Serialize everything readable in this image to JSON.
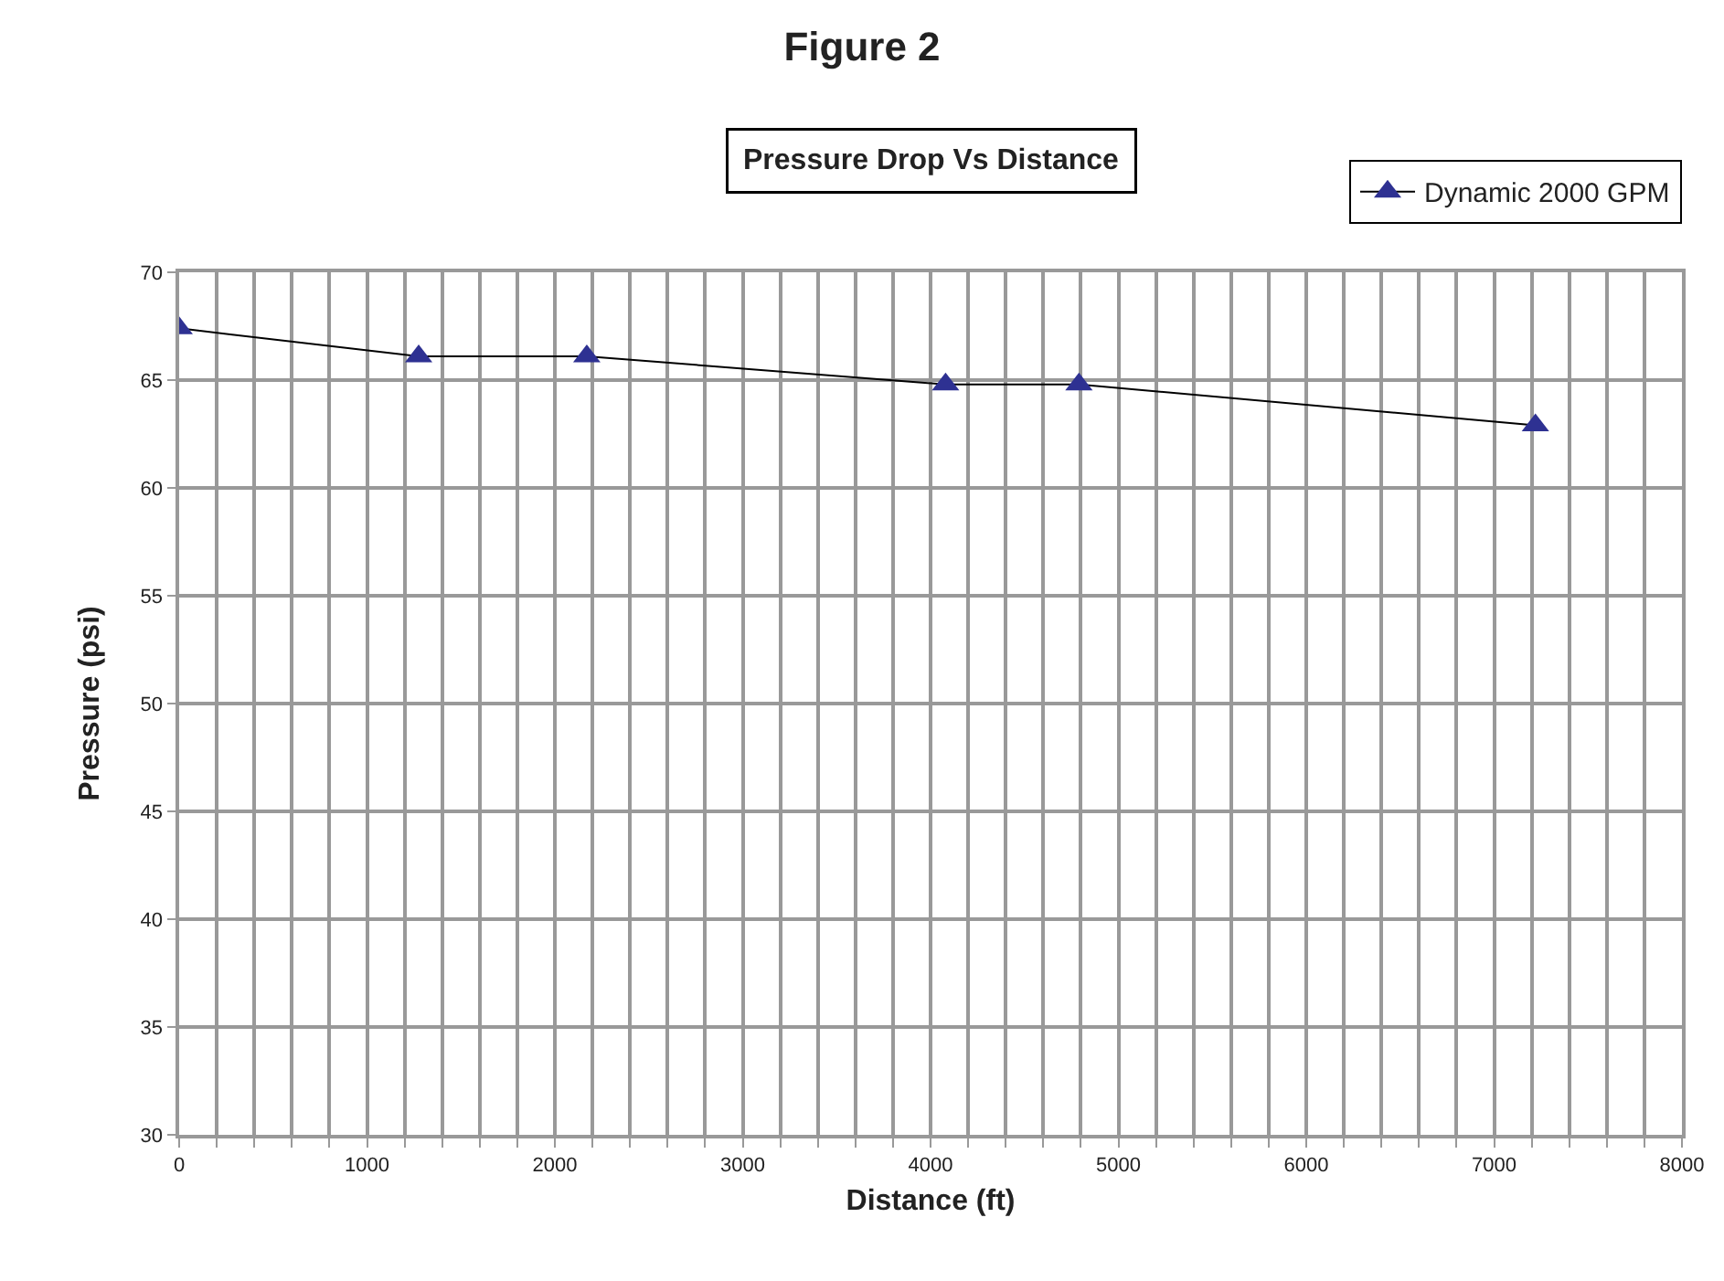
{
  "chart_data": {
    "type": "line",
    "title": "Figure 2",
    "subtitle": "Pressure Drop Vs Distance",
    "xlabel": "Distance (ft)",
    "ylabel": "Pressure (psi)",
    "x": [
      0,
      1275,
      2170,
      4080,
      4790,
      7220
    ],
    "series": [
      {
        "name": "Dynamic 2000 GPM",
        "color": "#2e3192",
        "values": [
          67.4,
          66.1,
          66.1,
          64.8,
          64.8,
          62.9
        ]
      }
    ],
    "xlim": [
      0,
      8000
    ],
    "xticks": [
      0,
      {
        "value": 200,
        "label": null
      },
      {
        "value": 400,
        "label": null
      },
      {
        "value": 600,
        "label": null
      },
      {
        "value": 800,
        "label": null
      },
      1000,
      {
        "value": 1200,
        "label": null
      },
      {
        "value": 1400,
        "label": null
      },
      {
        "value": 1600,
        "label": null
      },
      {
        "value": 1800,
        "label": null
      },
      2000,
      {
        "value": 2200,
        "label": null
      },
      {
        "value": 2400,
        "label": null
      },
      {
        "value": 2600,
        "label": null
      },
      {
        "value": 2800,
        "label": null
      },
      3000,
      {
        "value": 3200,
        "label": null
      },
      {
        "value": 3400,
        "label": null
      },
      {
        "value": 3600,
        "label": null
      },
      {
        "value": 3800,
        "label": null
      },
      4000,
      {
        "value": 4200,
        "label": null
      },
      {
        "value": 4400,
        "label": null
      },
      {
        "value": 4600,
        "label": null
      },
      {
        "value": 4800,
        "label": null
      },
      5000,
      {
        "value": 5200,
        "label": null
      },
      {
        "value": 5400,
        "label": null
      },
      {
        "value": 5600,
        "label": null
      },
      {
        "value": 5800,
        "label": null
      },
      6000,
      {
        "value": 6200,
        "label": null
      },
      {
        "value": 6400,
        "label": null
      },
      {
        "value": 6600,
        "label": null
      },
      {
        "value": 6800,
        "label": null
      },
      7000,
      {
        "value": 7200,
        "label": null
      },
      {
        "value": 7400,
        "label": null
      },
      {
        "value": 7600,
        "label": null
      },
      {
        "value": 7800,
        "label": null
      },
      8000
    ],
    "ylim": [
      30,
      70
    ],
    "yticks": [
      30,
      35,
      40,
      45,
      50,
      55,
      60,
      65,
      70
    ],
    "grid": true,
    "legend": "top right",
    "marker": "triangle",
    "line_style": "solid"
  }
}
